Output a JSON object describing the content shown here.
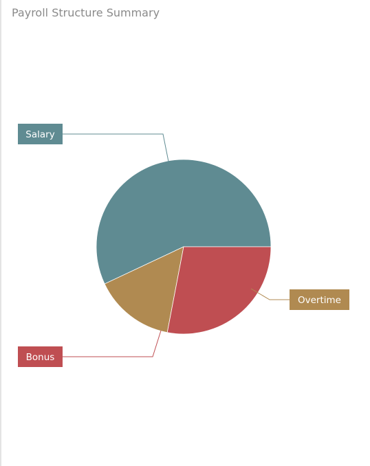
{
  "panel": {
    "title": "Payroll Structure Summary"
  },
  "chart_data": {
    "type": "pie",
    "title": "Payroll Structure Summary",
    "categories": [
      "Salary",
      "Overtime",
      "Bonus"
    ],
    "values": [
      57,
      15,
      28
    ],
    "colors": [
      "#5f8b92",
      "#b08a51",
      "#bf4e52"
    ],
    "legend": "none"
  }
}
